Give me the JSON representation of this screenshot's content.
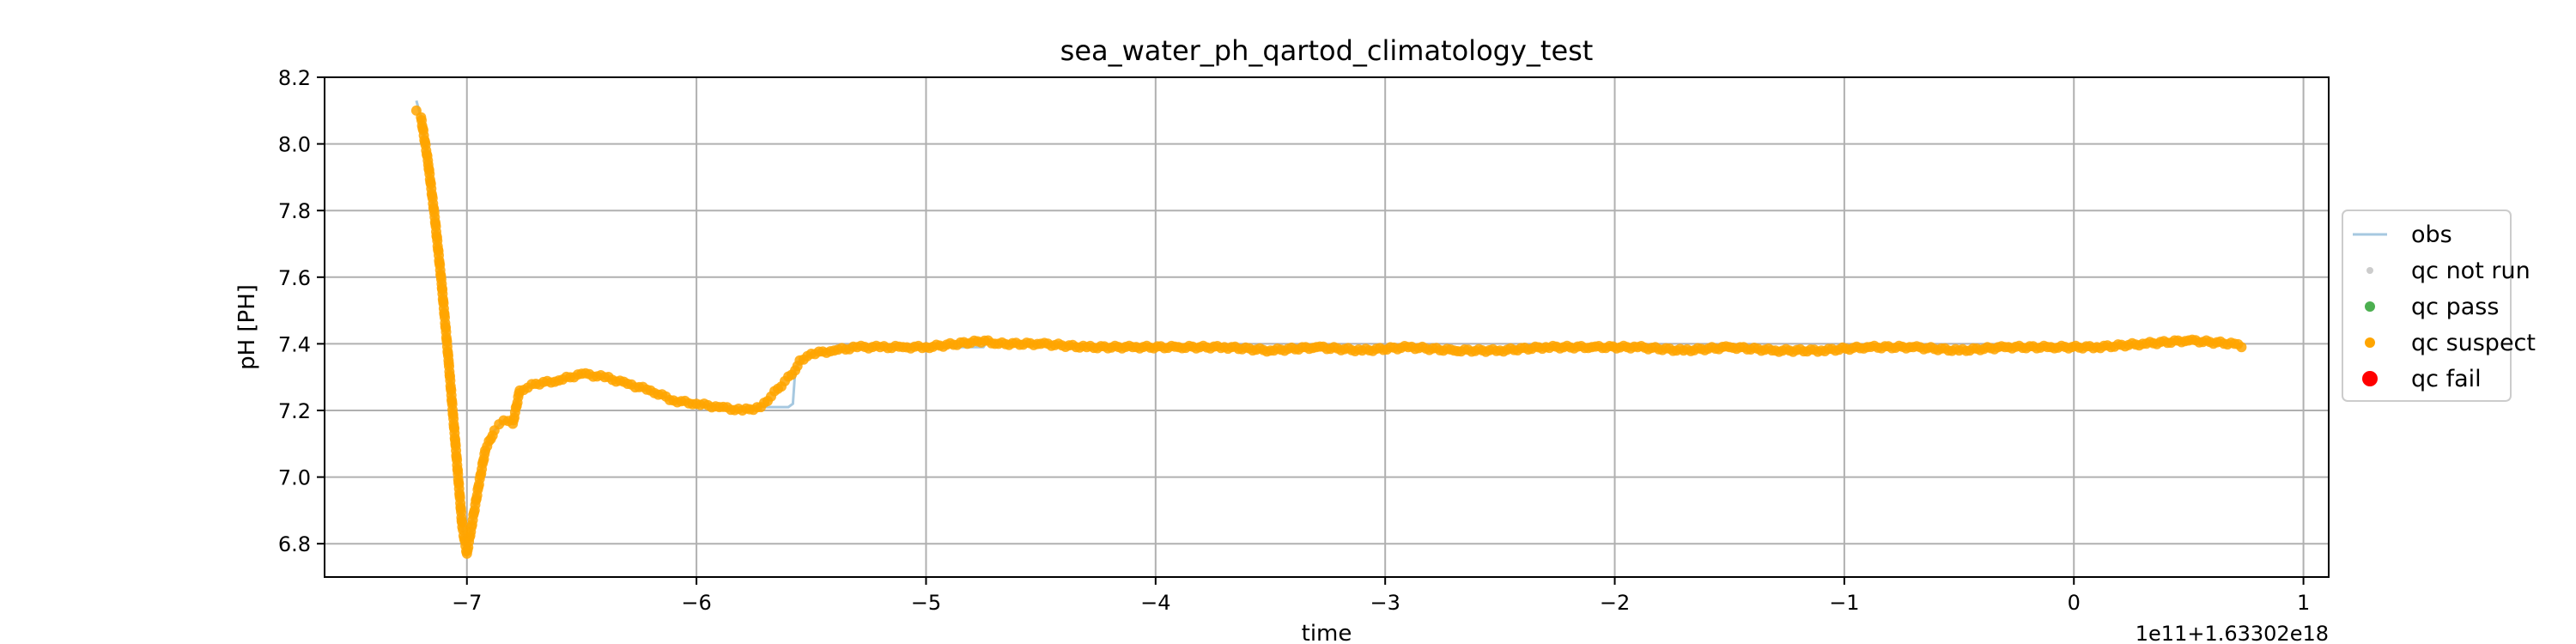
{
  "chart_data": {
    "type": "scatter",
    "title": "sea_water_ph_qartod_climatology_test",
    "xlabel": "time",
    "ylabel": "pH [PH]",
    "x_offset_label": "1e11+1.63302e18",
    "xlim": [
      -7.62,
      1.11
    ],
    "ylim": [
      6.7,
      8.2
    ],
    "x_ticks": [
      -7,
      -6,
      -5,
      -4,
      -3,
      -2,
      -1,
      0,
      1
    ],
    "x_tick_labels": [
      "−7",
      "−6",
      "−5",
      "−4",
      "−3",
      "−2",
      "−1",
      "0",
      "1"
    ],
    "y_ticks": [
      6.8,
      7.0,
      7.2,
      7.4,
      7.6,
      7.8,
      8.0,
      8.2
    ],
    "y_tick_labels": [
      "6.8",
      "7.0",
      "7.2",
      "7.4",
      "7.6",
      "7.8",
      "8.0",
      "8.2"
    ],
    "grid": true,
    "legend": {
      "placement": "right",
      "entries": [
        {
          "label": "obs",
          "kind": "line",
          "color": "#a6c8e0"
        },
        {
          "label": "qc not run",
          "kind": "dot",
          "color": "#cccccc"
        },
        {
          "label": "qc pass",
          "kind": "dot",
          "color": "#4caf50"
        },
        {
          "label": "qc suspect",
          "kind": "dot",
          "color": "#ffa500"
        },
        {
          "label": "qc fail",
          "kind": "dot",
          "color": "#ff0000"
        }
      ]
    },
    "series": [
      {
        "name": "obs",
        "kind": "line",
        "color": "#a6c8e0",
        "x": [
          -7.22,
          -7.2,
          -7.17,
          -7.14,
          -7.11,
          -7.08,
          -7.05,
          -7.02,
          -7.0,
          -6.98,
          -6.95,
          -6.92,
          -6.88,
          -6.84,
          -6.8,
          -6.77,
          -6.7,
          -6.6,
          -6.5,
          -6.4,
          -6.3,
          -6.2,
          -6.1,
          -6.0,
          -5.9,
          -5.8,
          -5.72,
          -5.6,
          -5.58,
          -5.57,
          -5.55,
          -5.5,
          -5.4,
          -5.3,
          -5.2,
          -5.1,
          -5.0,
          -4.75,
          -4.73,
          -4.7,
          -4.5,
          -4.3,
          -4.1,
          -3.9,
          -3.7,
          -3.5,
          -3.3,
          -3.1,
          -2.9,
          -2.7,
          -2.5,
          -2.3,
          -2.1,
          -1.9,
          -1.7,
          -1.5,
          -1.3,
          -1.1,
          -0.9,
          -0.7,
          -0.5,
          -0.3,
          -0.1,
          0.1,
          0.3,
          0.5,
          0.7,
          0.73
        ],
        "y": [
          8.13,
          8.08,
          7.95,
          7.78,
          7.58,
          7.35,
          7.1,
          6.85,
          6.77,
          6.85,
          6.97,
          7.08,
          7.14,
          7.17,
          7.16,
          7.26,
          7.28,
          7.29,
          7.31,
          7.3,
          7.28,
          7.26,
          7.23,
          7.22,
          7.21,
          7.2,
          7.21,
          7.21,
          7.22,
          7.32,
          7.35,
          7.37,
          7.38,
          7.39,
          7.39,
          7.39,
          7.39,
          7.39,
          7.41,
          7.4,
          7.4,
          7.39,
          7.39,
          7.39,
          7.39,
          7.38,
          7.39,
          7.38,
          7.39,
          7.38,
          7.38,
          7.39,
          7.39,
          7.39,
          7.38,
          7.39,
          7.38,
          7.38,
          7.39,
          7.39,
          7.38,
          7.39,
          7.39,
          7.39,
          7.4,
          7.41,
          7.4,
          7.39
        ]
      },
      {
        "name": "qc suspect",
        "kind": "scatter",
        "color": "#ffa500",
        "x": [
          -7.22,
          -7.2,
          -7.17,
          -7.14,
          -7.11,
          -7.08,
          -7.05,
          -7.02,
          -7.0,
          -6.98,
          -6.95,
          -6.92,
          -6.88,
          -6.84,
          -6.8,
          -6.77,
          -6.7,
          -6.6,
          -6.5,
          -6.4,
          -6.3,
          -6.2,
          -6.1,
          -6.0,
          -5.9,
          -5.8,
          -5.72,
          -5.57,
          -5.55,
          -5.5,
          -5.4,
          -5.3,
          -5.2,
          -5.1,
          -5.0,
          -4.73,
          -4.7,
          -4.5,
          -4.3,
          -4.1,
          -3.9,
          -3.7,
          -3.5,
          -3.3,
          -3.1,
          -2.9,
          -2.7,
          -2.5,
          -2.3,
          -2.1,
          -1.9,
          -1.7,
          -1.5,
          -1.3,
          -1.1,
          -0.9,
          -0.7,
          -0.5,
          -0.3,
          -0.1,
          0.1,
          0.3,
          0.5,
          0.7,
          0.73
        ],
        "y": [
          8.1,
          8.08,
          7.95,
          7.78,
          7.58,
          7.35,
          7.1,
          6.85,
          6.77,
          6.85,
          6.97,
          7.08,
          7.14,
          7.17,
          7.16,
          7.26,
          7.28,
          7.29,
          7.31,
          7.3,
          7.28,
          7.26,
          7.23,
          7.22,
          7.21,
          7.2,
          7.21,
          7.32,
          7.35,
          7.37,
          7.38,
          7.39,
          7.39,
          7.39,
          7.39,
          7.41,
          7.4,
          7.4,
          7.39,
          7.39,
          7.39,
          7.39,
          7.38,
          7.39,
          7.38,
          7.39,
          7.38,
          7.38,
          7.39,
          7.39,
          7.39,
          7.38,
          7.39,
          7.38,
          7.38,
          7.39,
          7.39,
          7.38,
          7.39,
          7.39,
          7.39,
          7.4,
          7.41,
          7.4,
          7.39
        ]
      }
    ]
  }
}
